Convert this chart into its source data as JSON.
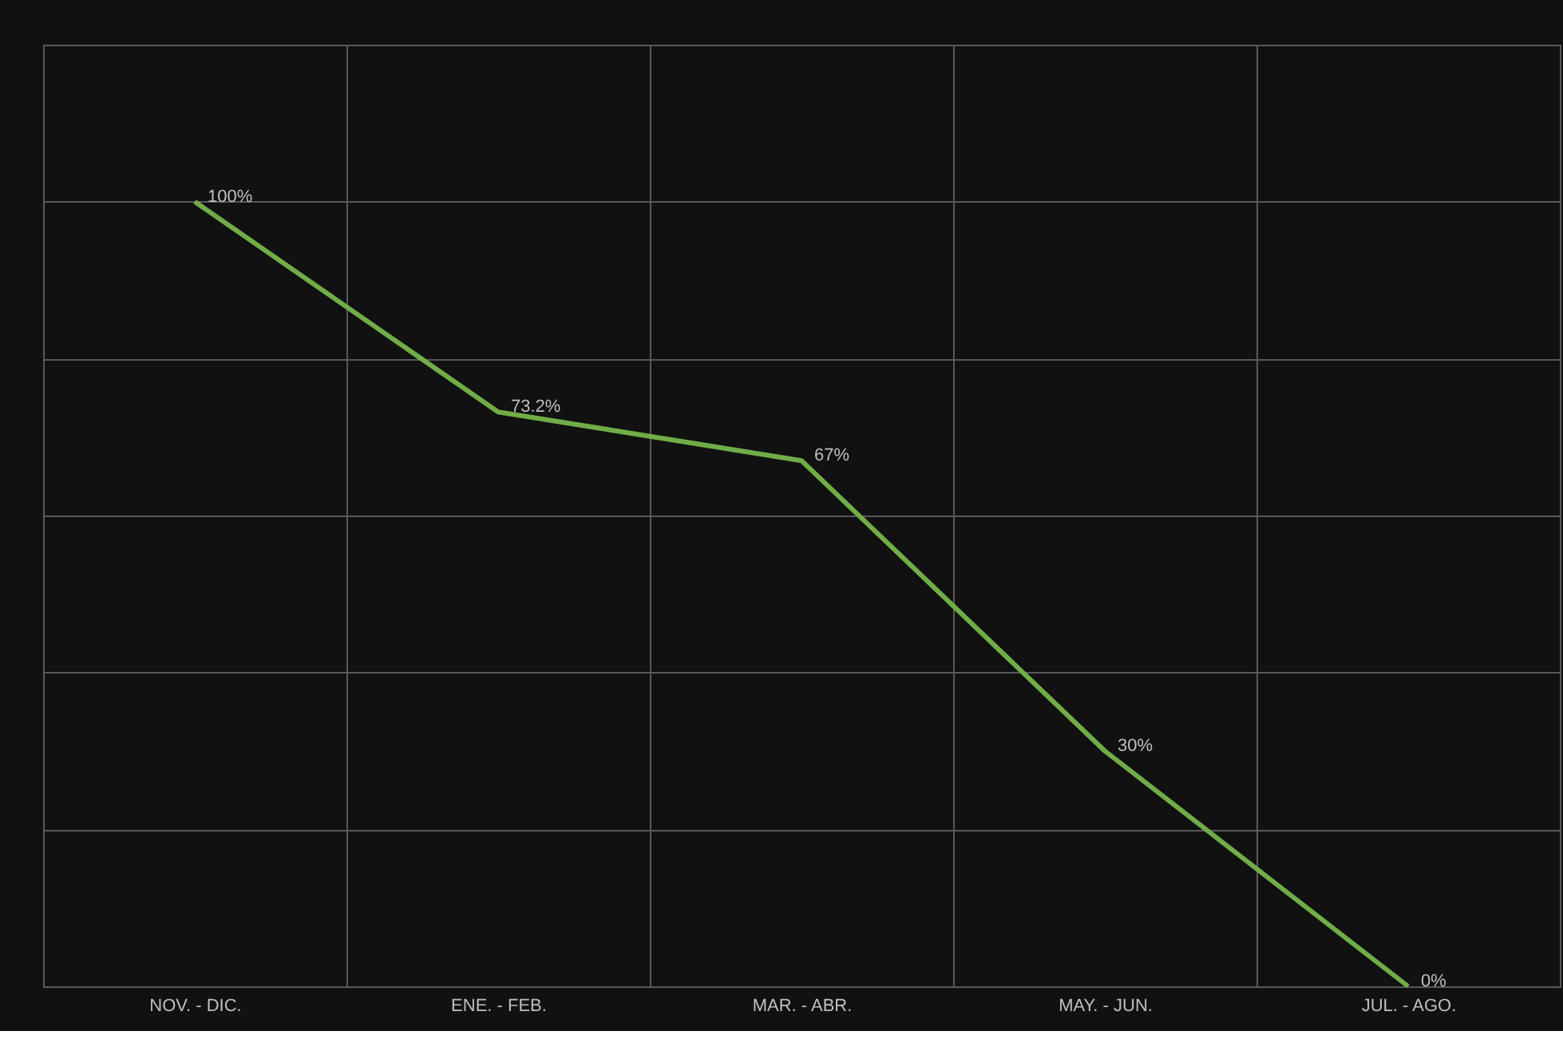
{
  "chart_data": {
    "type": "line",
    "categories": [
      "NOV. - DIC.",
      "ENE. - FEB.",
      "MAR. - ABR.",
      "MAY. - JUN.",
      "JUL. - AGO."
    ],
    "series": [
      {
        "color": "#70ad47",
        "values": [
          100,
          73.2,
          67,
          30,
          0
        ],
        "value_labels": [
          "100%",
          "73.2%",
          "67%",
          "30%",
          "0%"
        ]
      }
    ],
    "ylim": [
      0,
      120
    ],
    "yticks": [
      {
        "value": 0,
        "label": null
      },
      {
        "value": 20,
        "label": null
      },
      {
        "value": 40,
        "label": null
      },
      {
        "value": 60,
        "label": null
      },
      {
        "value": 80,
        "label": null
      },
      {
        "value": 100,
        "label": null
      },
      {
        "value": 120,
        "label": null
      }
    ],
    "grid": true
  }
}
